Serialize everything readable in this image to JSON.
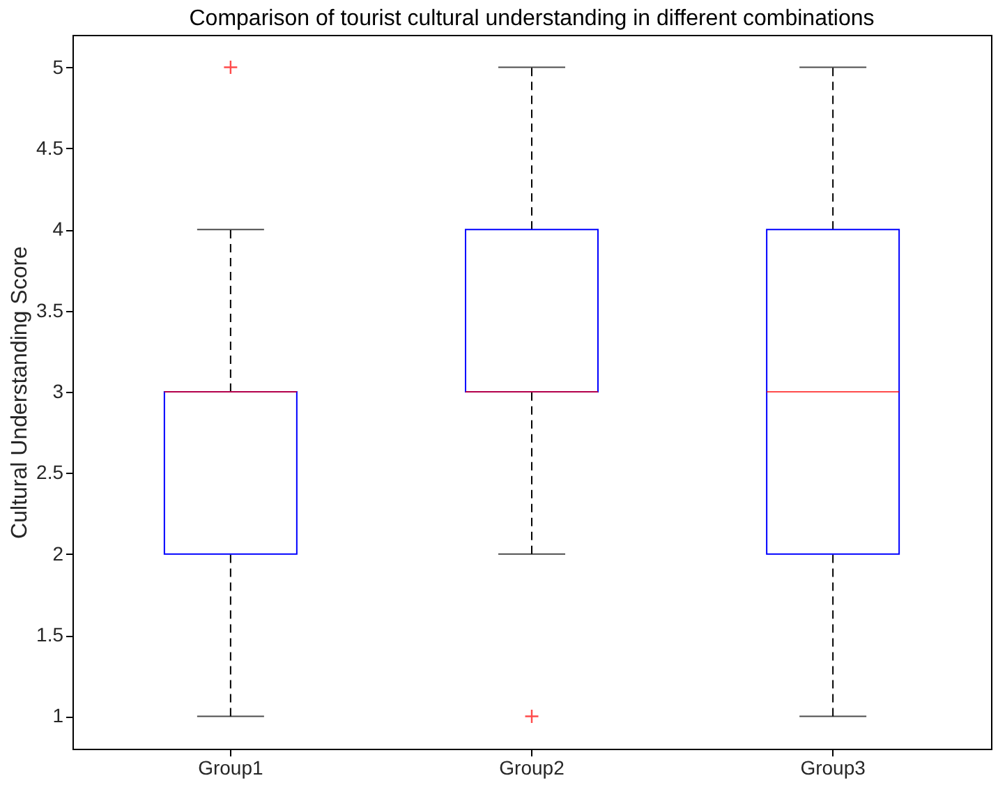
{
  "chart_data": {
    "type": "box",
    "title": "Comparison of tourist cultural understanding in different combinations",
    "ylabel": "Cultural Understanding Score",
    "categories": [
      "Group1",
      "Group2",
      "Group3"
    ],
    "boxes": [
      {
        "low": 1,
        "q1": 2,
        "median": 3,
        "q3": 3,
        "high": 4,
        "outliers": [
          5
        ]
      },
      {
        "low": 2,
        "q1": 3,
        "median": 3,
        "q3": 4,
        "high": 5,
        "outliers": [
          1
        ]
      },
      {
        "low": 1,
        "q1": 2,
        "median": 3,
        "q3": 4,
        "high": 5
      }
    ],
    "ylim": [
      0.8,
      5.2
    ],
    "yticks": [
      1,
      1.5,
      2,
      2.5,
      3,
      3.5,
      4,
      4.5,
      5
    ],
    "grid": false
  }
}
